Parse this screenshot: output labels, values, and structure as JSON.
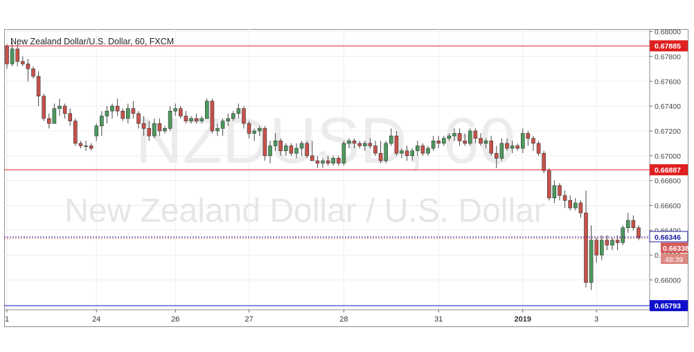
{
  "header": {
    "title": "New Zealand Dollar/U.S. Dollar, 60, FXCM"
  },
  "watermark": {
    "symbol": "NZDUSD, 60",
    "name": "New Zealand Dollar / U.S. Dollar"
  },
  "countdown": "48:39",
  "colors": {
    "up": "#4c9a5e",
    "down": "#c7524a",
    "resistance": "#e02020",
    "support": "#1010cc",
    "bid_label": "#1a1aa6",
    "price_label": "#d65c5c"
  },
  "chart_data": {
    "type": "candlestick",
    "symbol": "NZDUSD",
    "timeframe": "60",
    "ylim": [
      0.6576,
      0.6802
    ],
    "yticks": [
      0.68,
      0.678,
      0.676,
      0.674,
      0.672,
      0.67,
      0.668,
      0.666,
      0.664,
      0.662,
      0.66
    ],
    "ytick_labels": [
      "0.68000",
      "0.67800",
      "0.67600",
      "0.67400",
      "0.67200",
      "0.67000",
      "0.66800",
      "0.66600",
      "0.66400",
      "0.66200",
      "0.66000"
    ],
    "xticks": [
      {
        "index": 0,
        "label": "1"
      },
      {
        "index": 17,
        "label": "24"
      },
      {
        "index": 32,
        "label": "26"
      },
      {
        "index": 46,
        "label": "27"
      },
      {
        "index": 64,
        "label": "28"
      },
      {
        "index": 82,
        "label": "31"
      },
      {
        "index": 98,
        "label": "2019"
      },
      {
        "index": 112,
        "label": "3"
      }
    ],
    "hlines": [
      {
        "name": "resistance",
        "value": 0.67885,
        "label": "0.67885",
        "color": "#e02020"
      },
      {
        "name": "support",
        "value": 0.66887,
        "label": "0.66887",
        "color": "#e02020"
      },
      {
        "name": "support",
        "value": 0.65793,
        "label": "0.65793",
        "color": "#1010cc"
      }
    ],
    "price_labels": [
      {
        "value": 0.66346,
        "label": "0.66346",
        "style": "bid"
      },
      {
        "value": 0.66338,
        "label": "0.66338",
        "style": "last"
      }
    ],
    "candles": [
      [
        0.6788,
        0.679,
        0.677,
        0.6774
      ],
      [
        0.6774,
        0.6792,
        0.6772,
        0.6786
      ],
      [
        0.6786,
        0.679,
        0.6772,
        0.6776
      ],
      [
        0.6776,
        0.678,
        0.6772,
        0.6774
      ],
      [
        0.6774,
        0.6778,
        0.676,
        0.677
      ],
      [
        0.677,
        0.6772,
        0.6762,
        0.6764
      ],
      [
        0.6764,
        0.6768,
        0.674,
        0.6748
      ],
      [
        0.6748,
        0.675,
        0.6728,
        0.673
      ],
      [
        0.673,
        0.6734,
        0.6722,
        0.6726
      ],
      [
        0.6726,
        0.6742,
        0.6726,
        0.6738
      ],
      [
        0.6738,
        0.6746,
        0.6732,
        0.674
      ],
      [
        0.674,
        0.6742,
        0.673,
        0.6734
      ],
      [
        0.6734,
        0.6738,
        0.6724,
        0.6728
      ],
      [
        0.6728,
        0.673,
        0.6708,
        0.671
      ],
      [
        0.671,
        0.6712,
        0.6706,
        0.6708
      ],
      [
        0.6708,
        0.6712,
        0.6704,
        0.6708
      ],
      [
        0.6708,
        0.671,
        0.6704,
        0.6706
      ],
      [
        0.6716,
        0.6726,
        0.6712,
        0.6724
      ],
      [
        0.6724,
        0.6736,
        0.6716,
        0.6732
      ],
      [
        0.6732,
        0.674,
        0.6726,
        0.6736
      ],
      [
        0.6736,
        0.6742,
        0.673,
        0.674
      ],
      [
        0.674,
        0.6746,
        0.6732,
        0.6736
      ],
      [
        0.6736,
        0.6738,
        0.6728,
        0.673
      ],
      [
        0.673,
        0.6742,
        0.6726,
        0.6738
      ],
      [
        0.6738,
        0.6744,
        0.673,
        0.6734
      ],
      [
        0.6734,
        0.6736,
        0.6722,
        0.6726
      ],
      [
        0.6726,
        0.6732,
        0.6716,
        0.6722
      ],
      [
        0.6722,
        0.6728,
        0.6712,
        0.6716
      ],
      [
        0.6716,
        0.673,
        0.6714,
        0.6726
      ],
      [
        0.6726,
        0.673,
        0.6716,
        0.672
      ],
      [
        0.672,
        0.6724,
        0.6718,
        0.6722
      ],
      [
        0.6722,
        0.674,
        0.672,
        0.6736
      ],
      [
        0.6736,
        0.6742,
        0.6732,
        0.6738
      ],
      [
        0.6738,
        0.674,
        0.673,
        0.6732
      ],
      [
        0.6732,
        0.6736,
        0.6726,
        0.6728
      ],
      [
        0.6728,
        0.6732,
        0.6726,
        0.673
      ],
      [
        0.673,
        0.6734,
        0.6726,
        0.6728
      ],
      [
        0.6728,
        0.6732,
        0.6726,
        0.673
      ],
      [
        0.673,
        0.6746,
        0.673,
        0.6744
      ],
      [
        0.6744,
        0.6746,
        0.6718,
        0.672
      ],
      [
        0.672,
        0.6726,
        0.6716,
        0.6722
      ],
      [
        0.6722,
        0.673,
        0.6716,
        0.6728
      ],
      [
        0.6728,
        0.6734,
        0.6724,
        0.673
      ],
      [
        0.673,
        0.6736,
        0.6728,
        0.6734
      ],
      [
        0.6734,
        0.6742,
        0.673,
        0.6738
      ],
      [
        0.6738,
        0.674,
        0.6722,
        0.6726
      ],
      [
        0.6726,
        0.6728,
        0.6714,
        0.6718
      ],
      [
        0.6718,
        0.6722,
        0.6712,
        0.672
      ],
      [
        0.672,
        0.6724,
        0.6716,
        0.6722
      ],
      [
        0.6722,
        0.6724,
        0.6696,
        0.67
      ],
      [
        0.67,
        0.6712,
        0.6694,
        0.6708
      ],
      [
        0.6708,
        0.6718,
        0.6704,
        0.6712
      ],
      [
        0.6712,
        0.6714,
        0.67,
        0.6704
      ],
      [
        0.6704,
        0.671,
        0.67,
        0.6708
      ],
      [
        0.6708,
        0.671,
        0.67,
        0.6702
      ],
      [
        0.6702,
        0.671,
        0.6698,
        0.6706
      ],
      [
        0.6706,
        0.6712,
        0.67,
        0.671
      ],
      [
        0.671,
        0.6712,
        0.6698,
        0.67
      ],
      [
        0.67,
        0.6712,
        0.6696,
        0.6696
      ],
      [
        0.6696,
        0.67,
        0.669,
        0.6694
      ],
      [
        0.6694,
        0.6698,
        0.669,
        0.6696
      ],
      [
        0.6696,
        0.67,
        0.6692,
        0.6694
      ],
      [
        0.6694,
        0.67,
        0.6692,
        0.6698
      ],
      [
        0.6698,
        0.67,
        0.6692,
        0.6694
      ],
      [
        0.6694,
        0.6712,
        0.6692,
        0.671
      ],
      [
        0.671,
        0.6714,
        0.6706,
        0.6712
      ],
      [
        0.6712,
        0.6714,
        0.6706,
        0.671
      ],
      [
        0.671,
        0.6712,
        0.6706,
        0.6708
      ],
      [
        0.6708,
        0.6712,
        0.6704,
        0.671
      ],
      [
        0.671,
        0.6714,
        0.6706,
        0.6708
      ],
      [
        0.6708,
        0.6712,
        0.67,
        0.6702
      ],
      [
        0.6702,
        0.6712,
        0.6694,
        0.6696
      ],
      [
        0.6696,
        0.6712,
        0.6694,
        0.671
      ],
      [
        0.671,
        0.6722,
        0.6708,
        0.6716
      ],
      [
        0.6716,
        0.672,
        0.67,
        0.6702
      ],
      [
        0.6702,
        0.6706,
        0.6698,
        0.6704
      ],
      [
        0.6704,
        0.6708,
        0.6696,
        0.67
      ],
      [
        0.67,
        0.6706,
        0.6696,
        0.6704
      ],
      [
        0.6704,
        0.6712,
        0.67,
        0.6708
      ],
      [
        0.6708,
        0.671,
        0.67,
        0.6702
      ],
      [
        0.6702,
        0.6708,
        0.67,
        0.6706
      ],
      [
        0.6706,
        0.6716,
        0.6704,
        0.6712
      ],
      [
        0.6712,
        0.6716,
        0.6706,
        0.671
      ],
      [
        0.671,
        0.6716,
        0.6708,
        0.6714
      ],
      [
        0.6714,
        0.6718,
        0.6712,
        0.6716
      ],
      [
        0.6716,
        0.6722,
        0.6712,
        0.6718
      ],
      [
        0.6718,
        0.6722,
        0.6708,
        0.6712
      ],
      [
        0.6712,
        0.6718,
        0.6708,
        0.671
      ],
      [
        0.671,
        0.6722,
        0.6708,
        0.672
      ],
      [
        0.672,
        0.6722,
        0.671,
        0.6714
      ],
      [
        0.6714,
        0.6718,
        0.6708,
        0.671
      ],
      [
        0.671,
        0.6714,
        0.6706,
        0.6712
      ],
      [
        0.6712,
        0.6716,
        0.67,
        0.6702
      ],
      [
        0.6702,
        0.6708,
        0.669,
        0.6698
      ],
      [
        0.6698,
        0.6714,
        0.6696,
        0.671
      ],
      [
        0.671,
        0.6714,
        0.6704,
        0.6706
      ],
      [
        0.6706,
        0.6712,
        0.6702,
        0.6708
      ],
      [
        0.6708,
        0.671,
        0.6704,
        0.6706
      ],
      [
        0.6706,
        0.6722,
        0.6702,
        0.6718
      ],
      [
        0.6718,
        0.672,
        0.6708,
        0.6714
      ],
      [
        0.6714,
        0.6716,
        0.6704,
        0.671
      ],
      [
        0.671,
        0.6712,
        0.67,
        0.6702
      ],
      [
        0.6702,
        0.6704,
        0.6686,
        0.6688
      ],
      [
        0.6688,
        0.669,
        0.6664,
        0.6666
      ],
      [
        0.6666,
        0.668,
        0.6662,
        0.6676
      ],
      [
        0.6676,
        0.6678,
        0.6664,
        0.6668
      ],
      [
        0.6668,
        0.6672,
        0.6658,
        0.6664
      ],
      [
        0.6664,
        0.6668,
        0.6656,
        0.6658
      ],
      [
        0.6658,
        0.6666,
        0.6656,
        0.6662
      ],
      [
        0.6662,
        0.6664,
        0.665,
        0.6654
      ],
      [
        0.6654,
        0.6672,
        0.6594,
        0.6598
      ],
      [
        0.6598,
        0.6644,
        0.6592,
        0.6632
      ],
      [
        0.6632,
        0.6634,
        0.6614,
        0.662
      ],
      [
        0.662,
        0.6636,
        0.6616,
        0.6632
      ],
      [
        0.6632,
        0.6636,
        0.6624,
        0.6628
      ],
      [
        0.6628,
        0.6634,
        0.6624,
        0.6632
      ],
      [
        0.6632,
        0.6636,
        0.6624,
        0.663
      ],
      [
        0.663,
        0.6644,
        0.6628,
        0.6642
      ],
      [
        0.6642,
        0.6654,
        0.6638,
        0.6648
      ],
      [
        0.6648,
        0.6652,
        0.664,
        0.6642
      ],
      [
        0.6642,
        0.6644,
        0.6632,
        0.6634
      ]
    ]
  }
}
